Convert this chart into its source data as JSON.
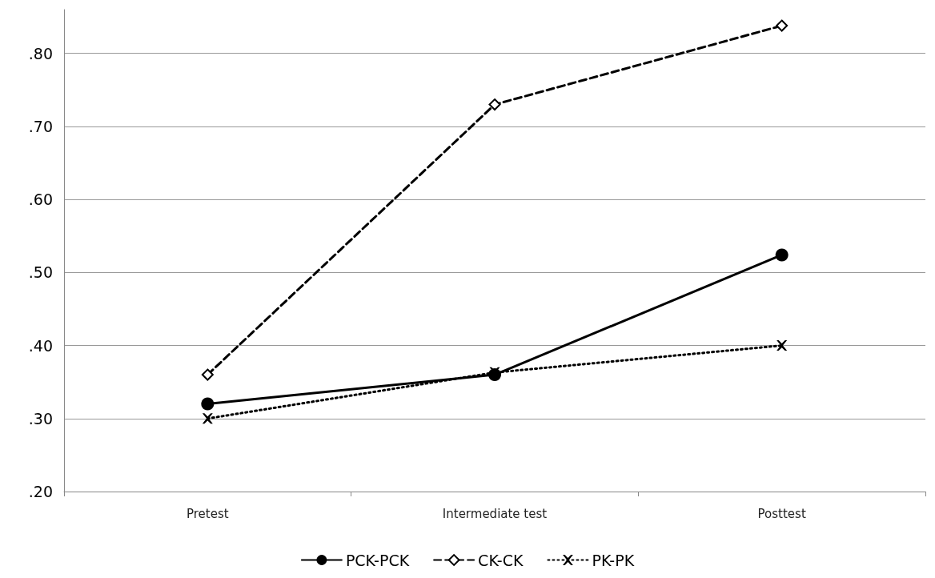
{
  "chart_data": {
    "type": "line",
    "categories": [
      "Pretest",
      "Intermediate test",
      "Posttest"
    ],
    "series": [
      {
        "name": "PCK-PCK",
        "color": "#000000",
        "values": [
          0.32,
          0.36,
          0.524
        ],
        "marker": "circle",
        "line_style": "solid"
      },
      {
        "name": "CK-CK",
        "color": "#000000",
        "values": [
          0.36,
          0.73,
          0.838
        ],
        "marker": "diamond",
        "line_style": "dashed"
      },
      {
        "name": "PK-PK",
        "color": "#000000",
        "values": [
          0.3,
          0.363,
          0.4
        ],
        "marker": "cross",
        "line_style": "dotted"
      }
    ],
    "ylim": [
      0.2,
      0.86
    ],
    "yticks": [
      {
        "value": 0.2,
        "label": ".20"
      },
      {
        "value": 0.3,
        "label": ".30"
      },
      {
        "value": 0.4,
        "label": ".40"
      },
      {
        "value": 0.5,
        "label": ".50"
      },
      {
        "value": 0.6,
        "label": ".60"
      },
      {
        "value": 0.7,
        "label": ".70"
      },
      {
        "value": 0.8,
        "label": ".80"
      }
    ],
    "grid": "y",
    "legend": "bottom"
  }
}
